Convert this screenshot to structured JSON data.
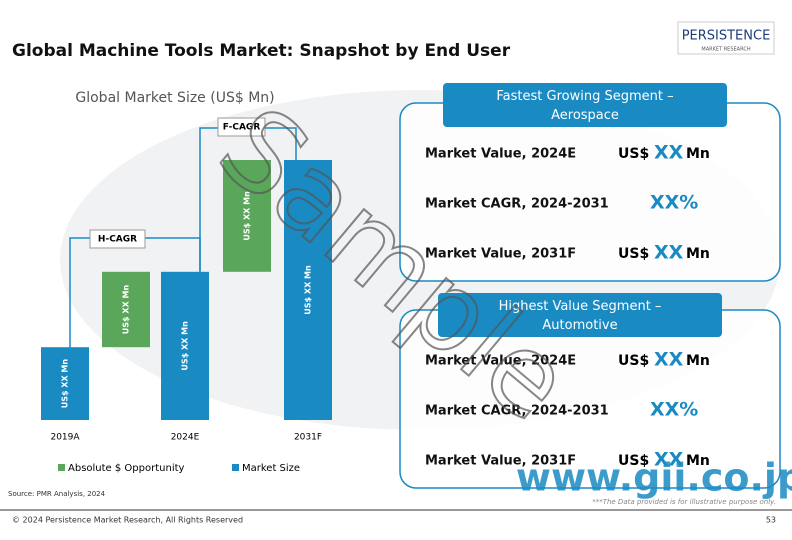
{
  "header": {
    "title": "Global Machine Tools Market: Snapshot by End User",
    "logo": "PERSISTENCE",
    "logo_sub": "MARKET RESEARCH"
  },
  "chart_data": {
    "type": "waterfall",
    "title": "Global Market Size (US$ Mn)",
    "categories": [
      "2019A",
      "2024E",
      "2031F"
    ],
    "series": [
      {
        "name": "Absolute $ Opportunity",
        "color": "#5aa65a",
        "values": [
          null,
          29,
          43
        ],
        "value_labels": [
          null,
          "US$ XX Mn",
          "US$ XX Mn"
        ]
      },
      {
        "name": "Market Size",
        "color": "#1a8ac3",
        "values": [
          28,
          57,
          100
        ],
        "value_labels": [
          "US$ XX Mn",
          "US$ XX Mn",
          "US$ XX Mn"
        ]
      }
    ],
    "ylim": [
      0,
      100
    ],
    "annotations": [
      "H-CAGR",
      "F-CAGR"
    ]
  },
  "segments": [
    {
      "title": "Fastest Growing Segment – Aerospace",
      "rows": [
        {
          "label": "Market Value, 2024E",
          "prefix": "US$",
          "value": "XX",
          "unit": "Mn"
        },
        {
          "label": "Market CAGR, 2024-2031",
          "value": "XX%"
        },
        {
          "label": "Market Value, 2031F",
          "prefix": "US$",
          "value": "XX",
          "unit": "Mn"
        }
      ]
    },
    {
      "title": "Highest Value Segment – Automotive",
      "rows": [
        {
          "label": "Market Value, 2024E",
          "prefix": "US$",
          "value": "XX",
          "unit": "Mn"
        },
        {
          "label": "Market CAGR, 2024-2031",
          "value": "XX%"
        },
        {
          "label": "Market Value, 2031F",
          "prefix": "US$",
          "value": "XX",
          "unit": "Mn"
        }
      ]
    }
  ],
  "watermark": "Sample",
  "site": "www.gii.co.jp",
  "disclaimer": "***The Data provided is for illustrative purpose only.",
  "source": "Source: PMR Analysis, 2024",
  "footer": {
    "copyright": "© 2024 Persistence Market Research, All Rights Reserved",
    "page": "53"
  }
}
